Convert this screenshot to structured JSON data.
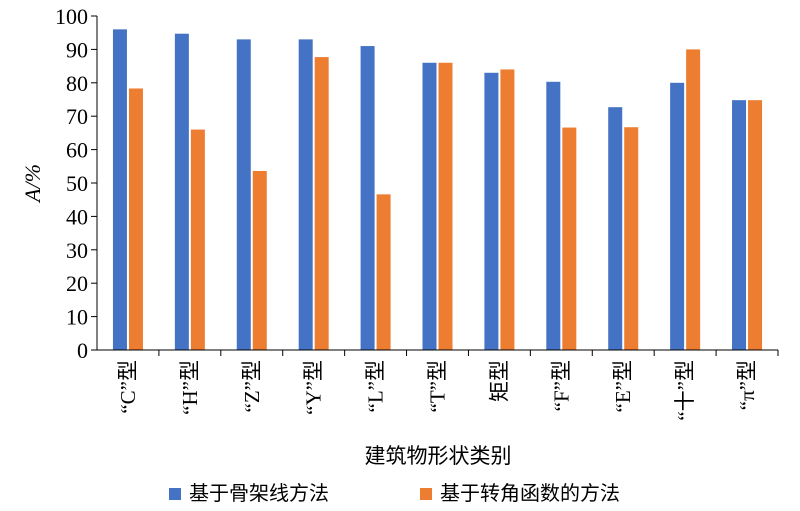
{
  "chart_data": {
    "type": "bar",
    "categories": [
      "“C”型",
      "“H”型",
      "“Z”型",
      "“Y”型",
      "“L”型",
      "“T”型",
      "矩型",
      "“F”型",
      "“E”型",
      "“十”型",
      "“π”型"
    ],
    "series": [
      {
        "name": "基于骨架线方法",
        "values": [
          96,
          94.7,
          93,
          93,
          91,
          86,
          83,
          80.3,
          72.7,
          80,
          74.8
        ],
        "color": "#4472C4"
      },
      {
        "name": "基于转角函数的方法",
        "values": [
          78.3,
          66,
          53.6,
          87.7,
          46.6,
          86,
          84,
          66.6,
          66.7,
          90,
          74.8
        ],
        "color": "#ED7D31"
      }
    ],
    "yticks": [
      0,
      10,
      20,
      30,
      40,
      50,
      60,
      70,
      80,
      90,
      100
    ],
    "ylim": [
      0,
      100
    ],
    "ylabel": "A/%",
    "xlabel": "建筑物形状类别",
    "grid": false,
    "legend_position": "bottom"
  }
}
